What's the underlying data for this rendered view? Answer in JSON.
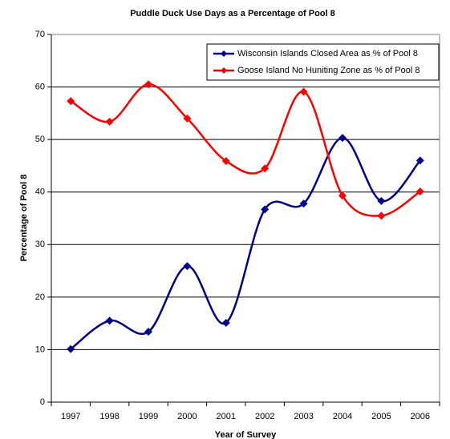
{
  "chart_data": {
    "type": "line",
    "title": "Puddle Duck Use Days as a Percentage of Pool 8",
    "x_label": "Year of Survey",
    "y_label": "Percentage of Pool 8",
    "categories": [
      "1997",
      "1998",
      "1999",
      "2000",
      "2001",
      "2002",
      "2003",
      "2004",
      "2005",
      "2006"
    ],
    "series": [
      {
        "name": "Wisconsin Islands Closed Area as % of Pool 8",
        "color": "#00008b",
        "values": [
          10.1,
          15.5,
          13.4,
          25.9,
          15.1,
          36.7,
          37.8,
          50.3,
          38.3,
          46.0
        ]
      },
      {
        "name": "Goose Island No Huniting Zone as % of Pool 8",
        "color": "#ff0000",
        "values": [
          57.3,
          53.4,
          60.5,
          54.0,
          45.9,
          44.5,
          59.1,
          39.3,
          35.5,
          40.1
        ]
      }
    ],
    "ylim": [
      0,
      70
    ],
    "yticks": [
      0,
      10,
      20,
      30,
      40,
      50,
      60,
      70
    ],
    "grid": true,
    "smooth": true,
    "legend": "top-right"
  }
}
